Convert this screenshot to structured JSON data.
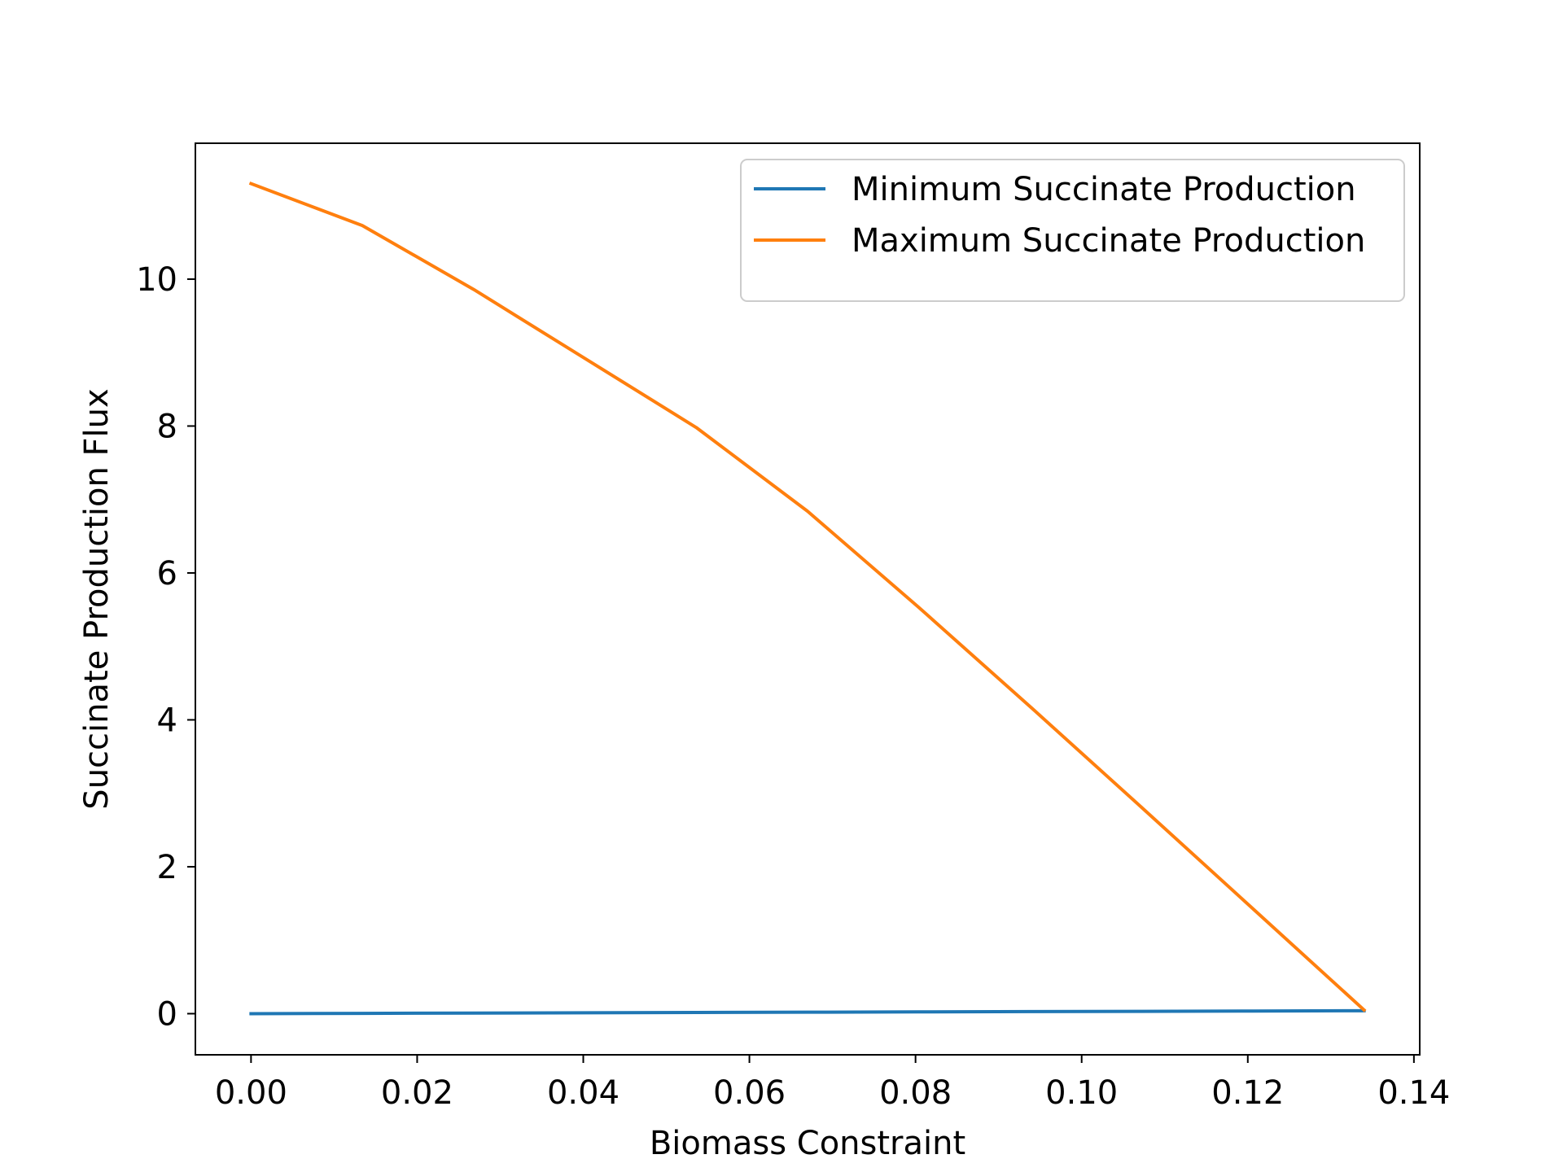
{
  "chart_data": {
    "type": "line",
    "title": "",
    "xlabel": "Biomass Constraint",
    "ylabel": "Succinate Production Flux",
    "xlim": [
      -0.0067,
      0.1407
    ],
    "ylim": [
      -0.56,
      11.85
    ],
    "xticks": [
      0.0,
      0.02,
      0.04,
      0.06,
      0.08,
      0.1,
      0.12,
      0.14
    ],
    "xtick_labels": [
      "0.00",
      "0.02",
      "0.04",
      "0.06",
      "0.08",
      "0.10",
      "0.12",
      "0.14"
    ],
    "yticks": [
      0,
      2,
      4,
      6,
      8,
      10
    ],
    "ytick_labels": [
      "0",
      "2",
      "4",
      "6",
      "8",
      "10"
    ],
    "grid": false,
    "legend_position": "top-right",
    "series": [
      {
        "name": "Minimum Succinate Production",
        "color": "#1f77b4",
        "x": [
          0.0,
          0.0134,
          0.0268,
          0.0402,
          0.0536,
          0.067,
          0.0804,
          0.0938,
          0.1072,
          0.1206,
          0.134
        ],
        "y": [
          0.0,
          0.004,
          0.008,
          0.012,
          0.016,
          0.02,
          0.024,
          0.028,
          0.032,
          0.036,
          0.04
        ]
      },
      {
        "name": "Maximum Succinate Production",
        "color": "#ff7f0e",
        "x": [
          0.0,
          0.0134,
          0.0268,
          0.0402,
          0.0536,
          0.067,
          0.0804,
          0.0938,
          0.1072,
          0.1206,
          0.134
        ],
        "y": [
          11.3,
          10.73,
          9.86,
          8.92,
          7.98,
          6.84,
          5.53,
          4.18,
          2.81,
          1.43,
          0.05
        ]
      }
    ]
  }
}
